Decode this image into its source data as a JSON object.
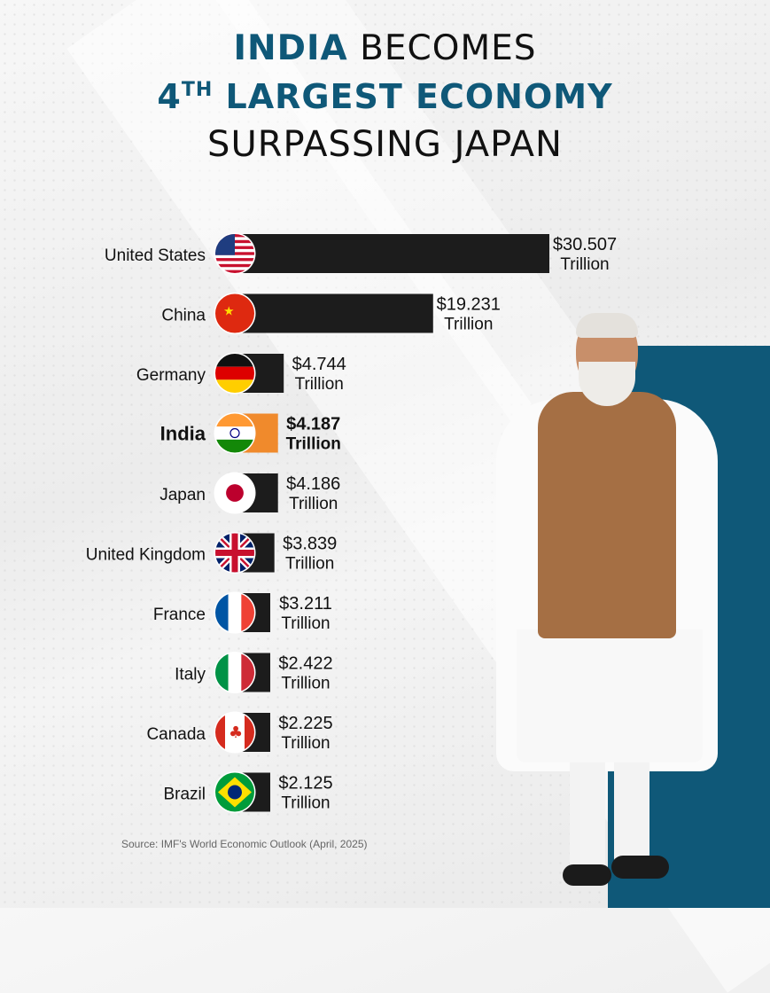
{
  "title": {
    "line1_accent": "INDIA",
    "line1_rest": "BECOMES",
    "line2_num": "4",
    "line2_sup": "TH",
    "line2_rest": "LARGEST ECONOMY",
    "line3": "SURPASSING JAPAN"
  },
  "colors": {
    "accent": "#0f5878",
    "bar": "#1c1c1c",
    "india_bar": "#f08a2c",
    "text": "#111111"
  },
  "chart_data": {
    "type": "bar",
    "orientation": "horizontal",
    "categories": [
      "United States",
      "China",
      "Germany",
      "India",
      "Japan",
      "United Kingdom",
      "France",
      "Italy",
      "Canada",
      "Brazil"
    ],
    "values": [
      30.507,
      19.231,
      4.744,
      4.187,
      4.186,
      3.839,
      3.211,
      2.422,
      2.225,
      2.125
    ],
    "value_labels": [
      "$30.507",
      "$19.231",
      "$4.744",
      "$4.187",
      "$4.186",
      "$3.839",
      "$3.211",
      "$2.422",
      "$2.225",
      "$2.125"
    ],
    "unit_label": "Trillion",
    "highlight": "India",
    "flags": [
      "us-flag-icon",
      "china-flag-icon",
      "germany-flag-icon",
      "india-flag-icon",
      "japan-flag-icon",
      "uk-flag-icon",
      "france-flag-icon",
      "italy-flag-icon",
      "canada-flag-icon",
      "brazil-flag-icon"
    ],
    "grid": false,
    "legend": "none"
  },
  "source": "Source: IMF's World Economic Outlook (April, 2025)"
}
